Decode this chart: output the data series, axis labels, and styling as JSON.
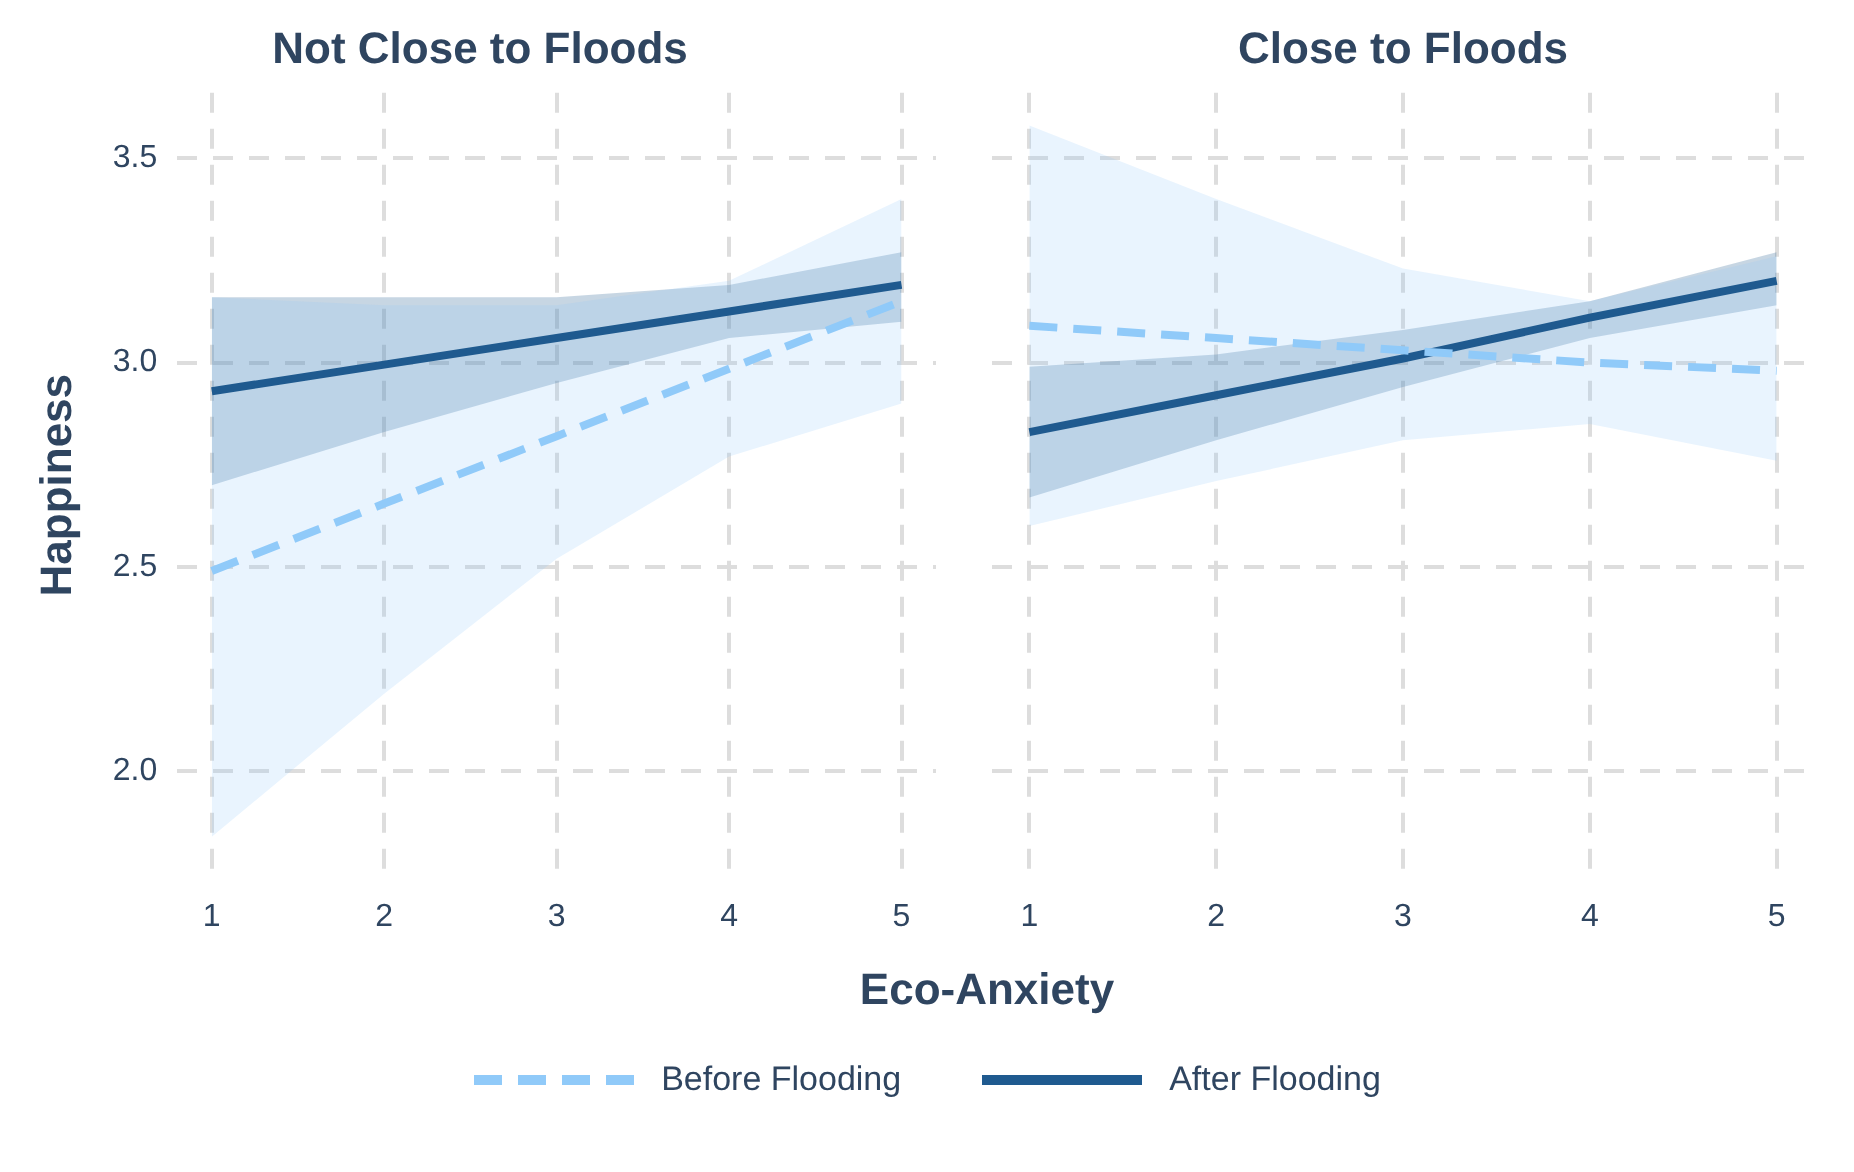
{
  "chart_data": [
    {
      "type": "line",
      "title": "Not Close to Floods",
      "xlabel": "Eco-Anxiety",
      "ylabel": "Happiness",
      "x": [
        1,
        2,
        3,
        4,
        5
      ],
      "xlim": [
        0.8,
        5.2
      ],
      "xticks": [
        1,
        2,
        3,
        4,
        5
      ],
      "ylim": [
        1.74,
        3.66
      ],
      "yticks": [
        {
          "value": 2,
          "label": "2.0"
        },
        2.5,
        {
          "value": 3,
          "label": "3.0"
        },
        3.5
      ],
      "grid": true,
      "legend": "bottom",
      "marker": "none",
      "series": [
        {
          "name": "Before Flooding",
          "color": "#90caf9",
          "line_style": "dashed",
          "values": [
            2.49,
            2.655,
            2.82,
            2.985,
            3.15
          ],
          "lower": [
            1.84,
            2.19,
            2.52,
            2.77,
            2.9
          ],
          "upper": [
            3.16,
            3.14,
            3.14,
            3.2,
            3.4
          ]
        },
        {
          "name": "After Flooding",
          "color": "#1f5a8f",
          "line_style": "solid",
          "values": [
            2.93,
            2.995,
            3.06,
            3.125,
            3.19
          ],
          "lower": [
            2.7,
            2.83,
            2.95,
            3.06,
            3.1
          ],
          "upper": [
            3.16,
            3.16,
            3.16,
            3.19,
            3.27
          ]
        }
      ]
    },
    {
      "type": "line",
      "title": "Close to Floods",
      "x": [
        1,
        2,
        3,
        4,
        5
      ],
      "xlim": [
        0.8,
        5.2
      ],
      "xticks": [
        1,
        2,
        3,
        4,
        5
      ],
      "ylim": [
        1.74,
        3.66
      ],
      "yticks": [
        2,
        2.5,
        3,
        3.5
      ],
      "tick_labels": "x",
      "grid": true,
      "marker": "none",
      "series": [
        {
          "color": "#90caf9",
          "line_style": "dashed",
          "values": [
            3.09,
            3.06,
            3.03,
            3.0,
            2.98
          ],
          "lower": [
            2.6,
            2.71,
            2.81,
            2.85,
            2.76
          ],
          "upper": [
            3.58,
            3.4,
            3.23,
            3.15,
            3.26
          ]
        },
        {
          "color": "#1f5a8f",
          "line_style": "solid",
          "values": [
            2.83,
            2.92,
            3.01,
            3.11,
            3.2
          ],
          "lower": [
            2.67,
            2.81,
            2.94,
            3.06,
            3.14
          ],
          "upper": [
            2.99,
            3.02,
            3.08,
            3.15,
            3.27
          ]
        }
      ]
    }
  ]
}
